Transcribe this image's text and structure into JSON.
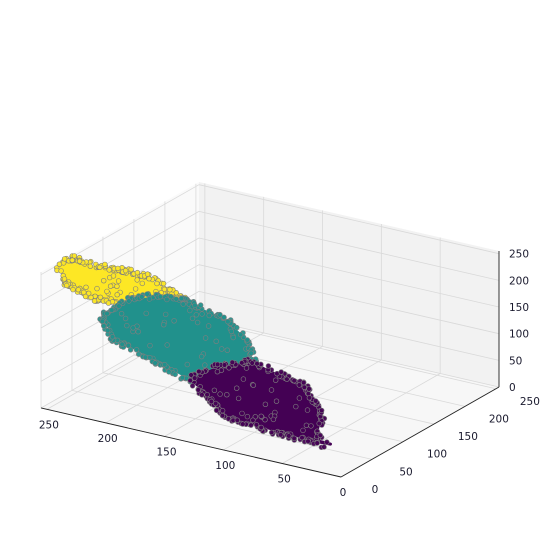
{
  "chart_data": {
    "type": "scatter",
    "projection": "3d",
    "title": "",
    "xlabel": "",
    "ylabel": "",
    "zlabel": "",
    "grid": true,
    "legend": "none",
    "x_ticks": [
      "250",
      "200",
      "150",
      "100",
      "50",
      "0"
    ],
    "y_ticks": [
      "0",
      "50",
      "100",
      "150",
      "200",
      "250"
    ],
    "z_ticks": [
      "0",
      "50",
      "100",
      "150",
      "200",
      "250"
    ],
    "xlim": [
      0,
      255
    ],
    "ylim": [
      0,
      255
    ],
    "zlim": [
      0,
      255
    ],
    "colors": {
      "cluster_low": "#440154",
      "cluster_mid": "#21918c",
      "cluster_high": "#fde725",
      "outline": "#7f7f7f",
      "pane": "#f2f2f2",
      "grid": "#d9d9d9"
    },
    "clusters": [
      {
        "color": "#440154",
        "polygon": [
          [
            55,
            60,
            0
          ],
          [
            30,
            40,
            20
          ],
          [
            55,
            20,
            40
          ],
          [
            100,
            10,
            55
          ],
          [
            120,
            18,
            75
          ],
          [
            140,
            25,
            95
          ],
          [
            128,
            45,
            110
          ],
          [
            115,
            75,
            105
          ],
          [
            85,
            100,
            60
          ],
          [
            65,
            90,
            20
          ],
          [
            60,
            75,
            5
          ]
        ]
      },
      {
        "color": "#21918c",
        "polygon": [
          [
            140,
            25,
            95
          ],
          [
            165,
            20,
            120
          ],
          [
            200,
            15,
            150
          ],
          [
            215,
            25,
            175
          ],
          [
            205,
            45,
            195
          ],
          [
            190,
            60,
            200
          ],
          [
            175,
            80,
            185
          ],
          [
            145,
            90,
            160
          ],
          [
            128,
            90,
            130
          ],
          [
            115,
            75,
            105
          ],
          [
            128,
            45,
            110
          ]
        ]
      },
      {
        "color": "#fde725",
        "polygon": [
          [
            175,
            80,
            185
          ],
          [
            190,
            60,
            200
          ],
          [
            205,
            45,
            195
          ],
          [
            225,
            30,
            205
          ],
          [
            245,
            20,
            232
          ],
          [
            255,
            30,
            250
          ],
          [
            250,
            45,
            250
          ],
          [
            240,
            55,
            235
          ],
          [
            225,
            75,
            220
          ],
          [
            210,
            85,
            210
          ]
        ]
      }
    ]
  }
}
